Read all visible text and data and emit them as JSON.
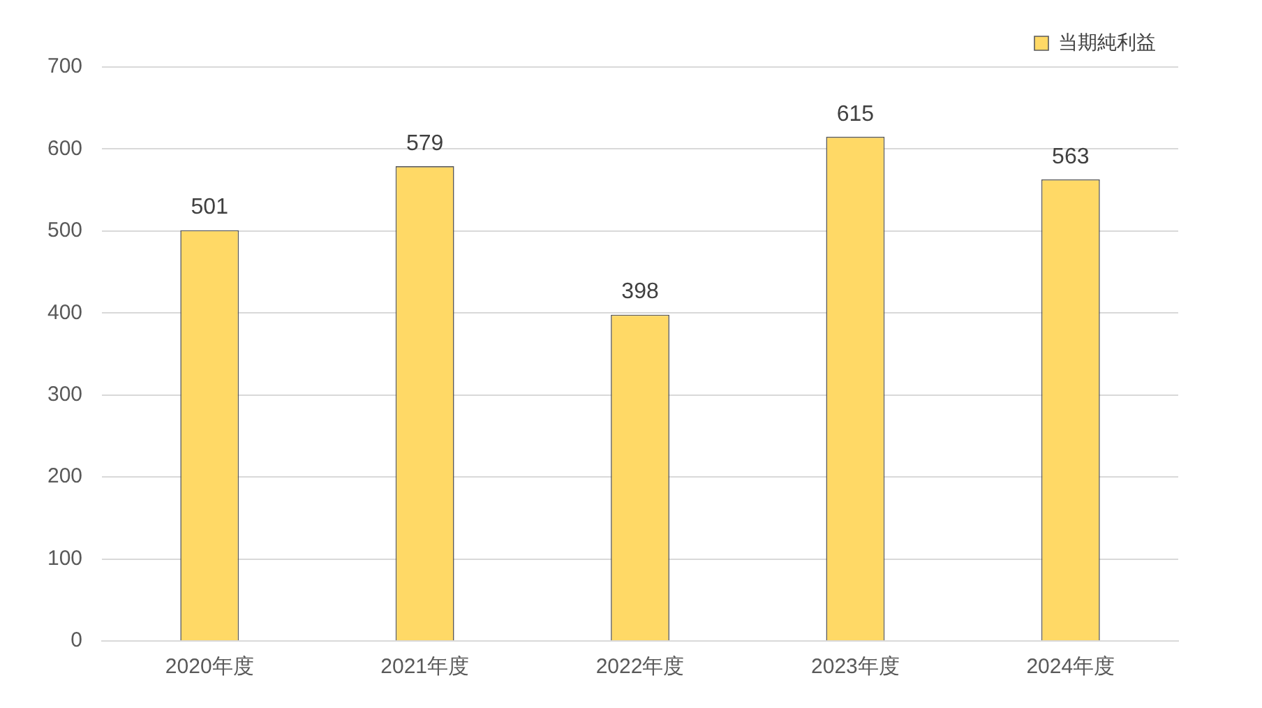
{
  "chart_data": {
    "type": "bar",
    "categories": [
      "2020年度",
      "2021年度",
      "2022年度",
      "2023年度",
      "2024年度"
    ],
    "series": [
      {
        "name": "当期純利益",
        "color": "#ffd966",
        "values": [
          501,
          579,
          398,
          615,
          563
        ]
      }
    ],
    "ylim": [
      0,
      700
    ],
    "yticks": [
      0,
      100,
      200,
      300,
      400,
      500,
      600,
      700
    ],
    "grid": "y",
    "legend": "top right",
    "data_labels": true
  }
}
